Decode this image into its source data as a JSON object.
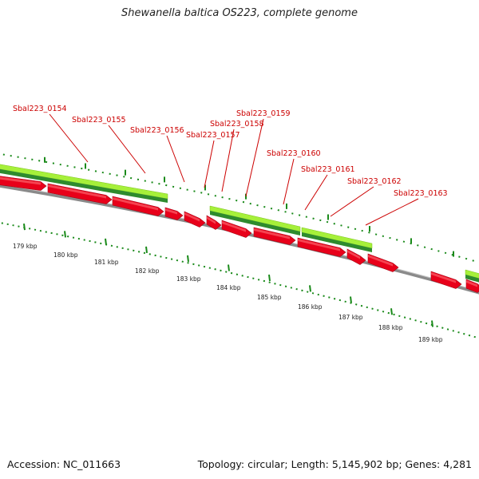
{
  "header": {
    "title": "Shewanella baltica OS223, complete genome"
  },
  "footer": {
    "accession": "Accession: NC_011663",
    "topology": "Topology: circular; Length: 5,145,902 bp; Genes: 4,281"
  },
  "colors": {
    "gene_red": "#e8001a",
    "gene_light_green": "#a6f03a",
    "gene_dark_green": "#2e8b2e",
    "backbone_gray": "#8a8a8a",
    "tick_green": "#1a8a1a",
    "label_red": "#cc0000"
  },
  "gene_labels": [
    "Sbal223_0154",
    "Sbal223_0155",
    "Sbal223_0156",
    "Sbal223_0157",
    "Sbal223_0158",
    "Sbal223_0159",
    "Sbal223_0160",
    "Sbal223_0161",
    "Sbal223_0162",
    "Sbal223_0163"
  ],
  "scale_labels": [
    "179 kbp",
    "180 kbp",
    "181 kbp",
    "182 kbp",
    "183 kbp",
    "184 kbp",
    "185 kbp",
    "186 kbp",
    "187 kbp",
    "188 kbp",
    "189 kbp"
  ]
}
